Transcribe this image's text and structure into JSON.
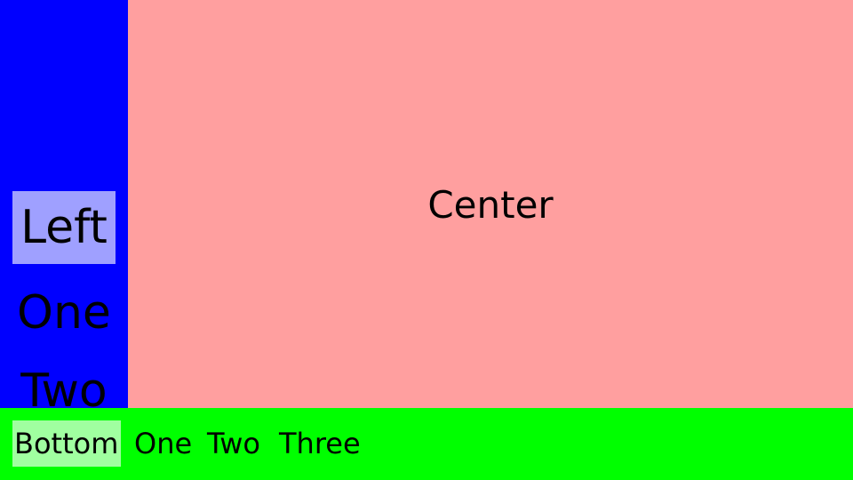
{
  "left": {
    "items": [
      "Left",
      "One",
      "Two"
    ]
  },
  "center": {
    "label": "Center"
  },
  "bottom": {
    "items": [
      "Bottom",
      "One",
      "Two",
      "Three"
    ]
  },
  "colors": {
    "left_background": "#0000ff",
    "left_highlight": "#9fa0ff",
    "center_background": "#ff9f9f",
    "bottom_background": "#00ff00",
    "bottom_highlight": "#a0ffa0"
  }
}
